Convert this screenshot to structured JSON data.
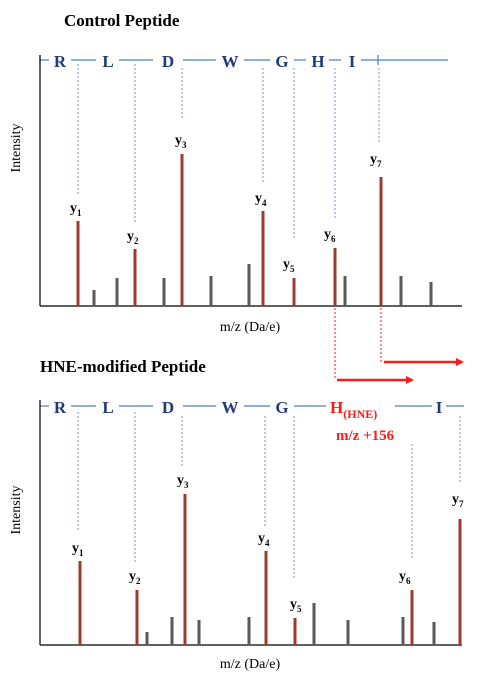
{
  "colors": {
    "residue": "#1f3b7a",
    "backbone": "#4a7fc4",
    "dotted": "#6f98d4",
    "y_ion_peak": "#9c3b32",
    "other_peak": "#5a5a5a",
    "modification": "#ff1a1a"
  },
  "panels": [
    {
      "title": "Control Peptide",
      "xlabel": "m/z (Da/e)",
      "ylabel": "Intensity",
      "residues": [
        "R",
        "L",
        "D",
        "W",
        "G",
        "H",
        "I"
      ],
      "y_ions": [
        {
          "main": "y",
          "sub": "1"
        },
        {
          "main": "y",
          "sub": "2"
        },
        {
          "main": "y",
          "sub": "3"
        },
        {
          "main": "y",
          "sub": "4"
        },
        {
          "main": "y",
          "sub": "5"
        },
        {
          "main": "y",
          "sub": "6"
        },
        {
          "main": "y",
          "sub": "7"
        }
      ]
    },
    {
      "title": "HNE-modified Peptide",
      "xlabel": "m/z (Da/e)",
      "ylabel": "Intensity",
      "residues": [
        "R",
        "L",
        "D",
        "W",
        "G",
        "H",
        "I"
      ],
      "modified_residue_subscript": "(HNE)",
      "modification_label": "m/z +156",
      "y_ions": [
        {
          "main": "y",
          "sub": "1"
        },
        {
          "main": "y",
          "sub": "2"
        },
        {
          "main": "y",
          "sub": "3"
        },
        {
          "main": "y",
          "sub": "4"
        },
        {
          "main": "y",
          "sub": "5"
        },
        {
          "main": "y",
          "sub": "6"
        },
        {
          "main": "y",
          "sub": "7"
        }
      ]
    }
  ]
}
